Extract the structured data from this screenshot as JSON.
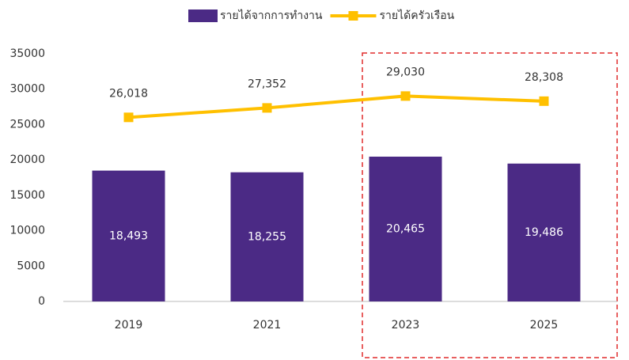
{
  "chart_data": {
    "type": "bar",
    "categories": [
      "2019",
      "2021",
      "2023",
      "2025"
    ],
    "series": [
      {
        "name": "รายได้จากการทำงาน",
        "type": "bar",
        "color": "#4b2a85",
        "values": [
          18493,
          18255,
          20465,
          19486
        ],
        "value_labels": [
          "18,493",
          "18,255",
          "20,465",
          "19,486"
        ]
      },
      {
        "name": "รายได้ครัวเรือน",
        "type": "line",
        "color": "#ffc000",
        "values": [
          26018,
          27352,
          29030,
          28308
        ],
        "value_labels": [
          "26,018",
          "27,352",
          "29,030",
          "28,308"
        ]
      }
    ],
    "ylim": [
      0,
      35000
    ],
    "yticks": [
      0,
      5000,
      10000,
      15000,
      20000,
      25000,
      30000,
      35000
    ],
    "grid": false,
    "legend": "top"
  }
}
